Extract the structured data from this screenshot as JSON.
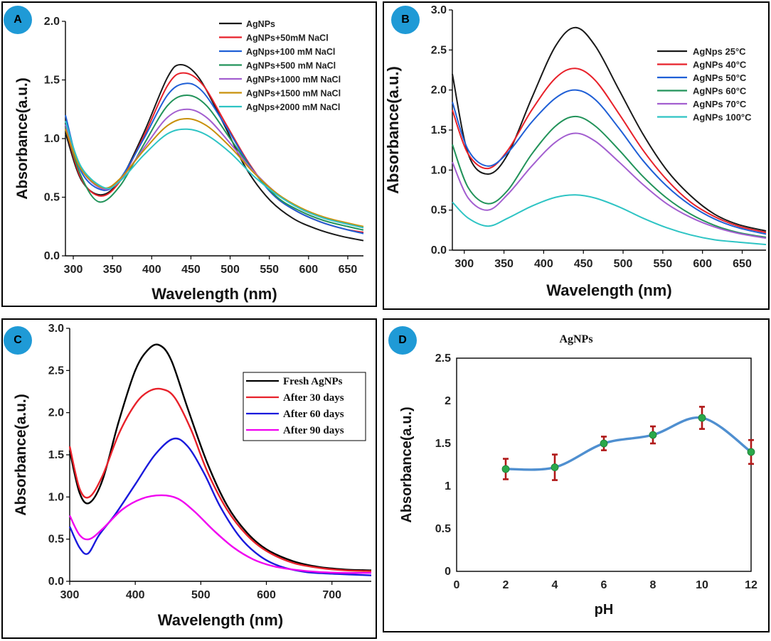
{
  "panels": {
    "a": {
      "label": "A"
    },
    "b": {
      "label": "B"
    },
    "c": {
      "label": "C"
    },
    "d": {
      "label": "D"
    }
  },
  "chart_data": [
    {
      "id": "A",
      "type": "line",
      "xlabel": "Wavelength (nm)",
      "ylabel": "Absorbance(a.u.)",
      "xlim": [
        290,
        670
      ],
      "ylim": [
        0.0,
        2.0
      ],
      "xticks": [
        300,
        350,
        400,
        450,
        500,
        550,
        600,
        650
      ],
      "yticks": [
        0.0,
        0.5,
        1.0,
        1.5,
        2.0
      ],
      "ytick_labels": [
        "0.0",
        "0.5",
        "1.0",
        "1.5",
        "2.0"
      ],
      "legend_position": "top-right",
      "series": [
        {
          "name": "AgNPs",
          "color": "#1a1a1a",
          "x": [
            290,
            310,
            335,
            360,
            390,
            420,
            437,
            460,
            490,
            520,
            550,
            580,
            610,
            640,
            670
          ],
          "y": [
            1.05,
            0.65,
            0.52,
            0.65,
            1.05,
            1.52,
            1.63,
            1.52,
            1.15,
            0.75,
            0.48,
            0.32,
            0.23,
            0.17,
            0.13
          ]
        },
        {
          "name": "AgNPs+50mM NaCl",
          "color": "#e8212a",
          "x": [
            290,
            310,
            335,
            360,
            390,
            420,
            440,
            465,
            495,
            525,
            555,
            585,
            615,
            645,
            670
          ],
          "y": [
            1.1,
            0.66,
            0.51,
            0.64,
            1.02,
            1.45,
            1.56,
            1.46,
            1.12,
            0.78,
            0.52,
            0.38,
            0.29,
            0.23,
            0.2
          ]
        },
        {
          "name": "AgNps+100 mM NaCl",
          "color": "#1f5fd6",
          "x": [
            290,
            310,
            338,
            360,
            390,
            420,
            443,
            465,
            495,
            525,
            555,
            585,
            615,
            645,
            670
          ],
          "y": [
            1.2,
            0.72,
            0.56,
            0.66,
            1.0,
            1.37,
            1.47,
            1.4,
            1.1,
            0.77,
            0.52,
            0.38,
            0.29,
            0.23,
            0.19
          ]
        },
        {
          "name": "AgNPs+500 mM NaCl",
          "color": "#22935a",
          "x": [
            290,
            310,
            333,
            360,
            390,
            420,
            445,
            470,
            500,
            530,
            560,
            590,
            620,
            650,
            670
          ],
          "y": [
            1.1,
            0.68,
            0.46,
            0.6,
            0.95,
            1.28,
            1.37,
            1.28,
            1.0,
            0.72,
            0.5,
            0.38,
            0.3,
            0.25,
            0.22
          ]
        },
        {
          "name": "AgNPs+1000 mM NaCl",
          "color": "#a35fd0",
          "x": [
            290,
            310,
            338,
            360,
            390,
            420,
            445,
            470,
            500,
            530,
            560,
            590,
            620,
            650,
            670
          ],
          "y": [
            1.12,
            0.74,
            0.57,
            0.65,
            0.92,
            1.18,
            1.25,
            1.18,
            0.96,
            0.72,
            0.53,
            0.4,
            0.32,
            0.27,
            0.24
          ]
        },
        {
          "name": "AgNPs+1500 mM NaCl",
          "color": "#c8900a",
          "x": [
            290,
            310,
            338,
            360,
            390,
            420,
            445,
            470,
            500,
            530,
            560,
            590,
            620,
            650,
            670
          ],
          "y": [
            1.08,
            0.74,
            0.58,
            0.66,
            0.9,
            1.11,
            1.17,
            1.11,
            0.93,
            0.71,
            0.53,
            0.41,
            0.33,
            0.28,
            0.25
          ]
        },
        {
          "name": "AgNps+2000 mM NaCl",
          "color": "#2ec4c4",
          "x": [
            290,
            310,
            340,
            360,
            390,
            420,
            445,
            470,
            500,
            530,
            560,
            590,
            620,
            650,
            670
          ],
          "y": [
            1.15,
            0.76,
            0.58,
            0.64,
            0.86,
            1.04,
            1.08,
            1.03,
            0.88,
            0.68,
            0.52,
            0.4,
            0.32,
            0.27,
            0.24
          ]
        }
      ]
    },
    {
      "id": "B",
      "type": "line",
      "xlabel": "Wavelength (nm)",
      "ylabel": "Absorbance(a.u.)",
      "xlim": [
        285,
        680
      ],
      "ylim": [
        0.0,
        3.0
      ],
      "xticks": [
        300,
        350,
        400,
        450,
        500,
        550,
        600,
        650
      ],
      "yticks": [
        0.0,
        0.5,
        1.0,
        1.5,
        2.0,
        2.5,
        3.0
      ],
      "ytick_labels": [
        "0.0",
        "0.5",
        "1.0",
        "1.5",
        "2.0",
        "2.5",
        "3.0"
      ],
      "legend_position": "top-right",
      "series": [
        {
          "name": "AgNps 25°C",
          "color": "#1a1a1a",
          "x": [
            285,
            305,
            330,
            355,
            385,
            415,
            440,
            465,
            495,
            525,
            555,
            585,
            615,
            645,
            680
          ],
          "y": [
            2.2,
            1.2,
            0.95,
            1.2,
            1.9,
            2.55,
            2.78,
            2.55,
            2.0,
            1.45,
            1.0,
            0.68,
            0.45,
            0.32,
            0.24
          ]
        },
        {
          "name": "AgNPs 40°C",
          "color": "#e8212a",
          "x": [
            285,
            305,
            330,
            355,
            385,
            415,
            440,
            465,
            495,
            525,
            555,
            585,
            615,
            645,
            680
          ],
          "y": [
            1.75,
            1.2,
            1.02,
            1.25,
            1.75,
            2.15,
            2.27,
            2.12,
            1.7,
            1.25,
            0.88,
            0.6,
            0.42,
            0.3,
            0.22
          ]
        },
        {
          "name": "AgNPs 50°C",
          "color": "#1f5fd6",
          "x": [
            285,
            305,
            330,
            355,
            385,
            415,
            440,
            465,
            495,
            525,
            555,
            585,
            615,
            645,
            680
          ],
          "y": [
            1.85,
            1.25,
            1.05,
            1.22,
            1.6,
            1.9,
            2.0,
            1.88,
            1.52,
            1.12,
            0.8,
            0.56,
            0.39,
            0.28,
            0.2
          ]
        },
        {
          "name": "AgNPs 60°C",
          "color": "#22935a",
          "x": [
            285,
            305,
            330,
            355,
            385,
            415,
            440,
            465,
            495,
            525,
            555,
            585,
            615,
            645,
            680
          ],
          "y": [
            1.32,
            0.78,
            0.58,
            0.75,
            1.2,
            1.55,
            1.67,
            1.55,
            1.25,
            0.92,
            0.65,
            0.45,
            0.31,
            0.22,
            0.16
          ]
        },
        {
          "name": "AgNPs 70°C",
          "color": "#a35fd0",
          "x": [
            285,
            305,
            330,
            355,
            385,
            415,
            440,
            465,
            495,
            525,
            555,
            585,
            615,
            645,
            680
          ],
          "y": [
            1.1,
            0.65,
            0.5,
            0.7,
            1.05,
            1.35,
            1.46,
            1.36,
            1.1,
            0.82,
            0.58,
            0.41,
            0.29,
            0.21,
            0.15
          ]
        },
        {
          "name": "AgNPs 100°C",
          "color": "#2ec4c4",
          "x": [
            285,
            305,
            330,
            355,
            385,
            415,
            440,
            465,
            495,
            525,
            555,
            585,
            615,
            645,
            680
          ],
          "y": [
            0.6,
            0.4,
            0.3,
            0.4,
            0.55,
            0.66,
            0.69,
            0.65,
            0.54,
            0.4,
            0.28,
            0.19,
            0.13,
            0.1,
            0.07
          ]
        }
      ]
    },
    {
      "id": "C",
      "type": "line",
      "xlabel": "Wavelength (nm)",
      "ylabel": "Absorbance(a.u.)",
      "xlim": [
        300,
        760
      ],
      "ylim": [
        0.0,
        3.0
      ],
      "xticks": [
        300,
        400,
        500,
        600,
        700
      ],
      "yticks": [
        0.0,
        0.5,
        1.0,
        1.5,
        2.0,
        2.5,
        3.0
      ],
      "ytick_labels": [
        "0.0",
        "0.5",
        "1.0",
        "1.5",
        "2.0",
        "2.5",
        "3.0"
      ],
      "legend_position": "right",
      "series": [
        {
          "name": "Fresh AgNPs",
          "color": "#000000",
          "x": [
            300,
            315,
            330,
            350,
            375,
            400,
            420,
            437,
            455,
            480,
            510,
            540,
            570,
            600,
            640,
            680,
            720,
            760
          ],
          "y": [
            1.55,
            1.05,
            0.93,
            1.2,
            1.9,
            2.5,
            2.75,
            2.8,
            2.62,
            2.05,
            1.4,
            0.9,
            0.58,
            0.38,
            0.24,
            0.17,
            0.14,
            0.13
          ]
        },
        {
          "name": "After 30 days",
          "color": "#e8212a",
          "x": [
            300,
            315,
            330,
            350,
            375,
            400,
            420,
            440,
            460,
            485,
            510,
            540,
            570,
            600,
            640,
            680,
            720,
            760
          ],
          "y": [
            1.6,
            1.1,
            1.0,
            1.25,
            1.75,
            2.1,
            2.25,
            2.28,
            2.18,
            1.8,
            1.3,
            0.85,
            0.55,
            0.36,
            0.22,
            0.16,
            0.13,
            0.12
          ]
        },
        {
          "name": "After 60 days",
          "color": "#1a1adc",
          "x": [
            300,
            315,
            328,
            345,
            370,
            400,
            430,
            458,
            480,
            505,
            530,
            560,
            590,
            620,
            660,
            700,
            730,
            760
          ],
          "y": [
            0.65,
            0.4,
            0.33,
            0.55,
            0.8,
            1.15,
            1.5,
            1.69,
            1.6,
            1.28,
            0.88,
            0.52,
            0.3,
            0.18,
            0.11,
            0.09,
            0.08,
            0.07
          ]
        },
        {
          "name": "After 90 days",
          "color": "#f000f0",
          "x": [
            300,
            315,
            330,
            350,
            380,
            410,
            440,
            465,
            490,
            520,
            550,
            580,
            610,
            640,
            680,
            720,
            760
          ],
          "y": [
            0.78,
            0.55,
            0.5,
            0.62,
            0.85,
            0.98,
            1.02,
            0.98,
            0.83,
            0.6,
            0.4,
            0.26,
            0.18,
            0.14,
            0.11,
            0.1,
            0.1
          ]
        }
      ]
    },
    {
      "id": "D",
      "type": "scatter",
      "title": "AgNPs",
      "xlabel": "pH",
      "ylabel": "Absorbance(a.u.)",
      "xlim": [
        0,
        12
      ],
      "ylim": [
        0,
        2.5
      ],
      "xticks": [
        0,
        2,
        4,
        6,
        8,
        10,
        12
      ],
      "yticks": [
        0,
        0.5,
        1,
        1.5,
        2,
        2.5
      ],
      "ytick_labels": [
        "0",
        "0.5",
        "1",
        "1.5",
        "2",
        "2.5"
      ],
      "grid": false,
      "line_color": "#4f8fd0",
      "marker_color": "#2aa84a",
      "errorbar_color": "#b01818",
      "x": [
        2,
        4,
        6,
        8,
        10,
        12
      ],
      "y": [
        1.2,
        1.22,
        1.5,
        1.6,
        1.8,
        1.4
      ],
      "yerr": [
        0.12,
        0.15,
        0.08,
        0.1,
        0.13,
        0.14
      ]
    }
  ]
}
